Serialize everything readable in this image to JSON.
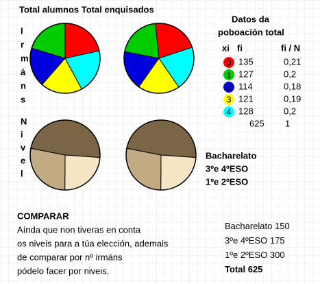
{
  "header": {
    "title": "Total alumnos Total enquisados",
    "data_title_1": "Datos da",
    "data_title_2": "poboación total"
  },
  "side_labels": {
    "siblings": [
      "I",
      "r",
      "m",
      "á",
      "n",
      "s"
    ],
    "level": [
      "N",
      "i",
      "v",
      "e",
      "l"
    ]
  },
  "table": {
    "columns": [
      "xi",
      "fi",
      "fi / N"
    ],
    "rows": [
      {
        "xi": "0",
        "fi": 135,
        "rel": "0,21",
        "color": "#ff0000"
      },
      {
        "xi": "1",
        "fi": 127,
        "rel": "0,2",
        "color": "#00cc00"
      },
      {
        "xi": "2",
        "fi": 114,
        "rel": "0,18",
        "color": "#0000dd"
      },
      {
        "xi": "3",
        "fi": 121,
        "rel": "0,19",
        "color": "#ffff00"
      },
      {
        "xi": "4",
        "fi": 128,
        "rel": "0,2",
        "color": "#00ffff"
      }
    ],
    "total_fi": 625,
    "total_rel": 1
  },
  "levels": [
    {
      "name": "Bacharelato",
      "count": 150,
      "color": "#f6e5c2",
      "text_color": "#c9a36a"
    },
    {
      "name": "3ºe 4ºESO",
      "count": 175,
      "color": "#c2ab83",
      "text_color": "#a07c48"
    },
    {
      "name": "1ºe 2ºESO",
      "count": 300,
      "color": "#7a6647",
      "text_color": "#5e4a2c"
    }
  ],
  "compare": {
    "title": "COMPARAR",
    "lines": [
      "Aínda que non tiveras en conta",
      "os niveis para a túa elección, ademais",
      "de comparar por nº irmáns",
      "pódelo facer por niveis."
    ],
    "total_label": "Total",
    "total": 625
  }
}
